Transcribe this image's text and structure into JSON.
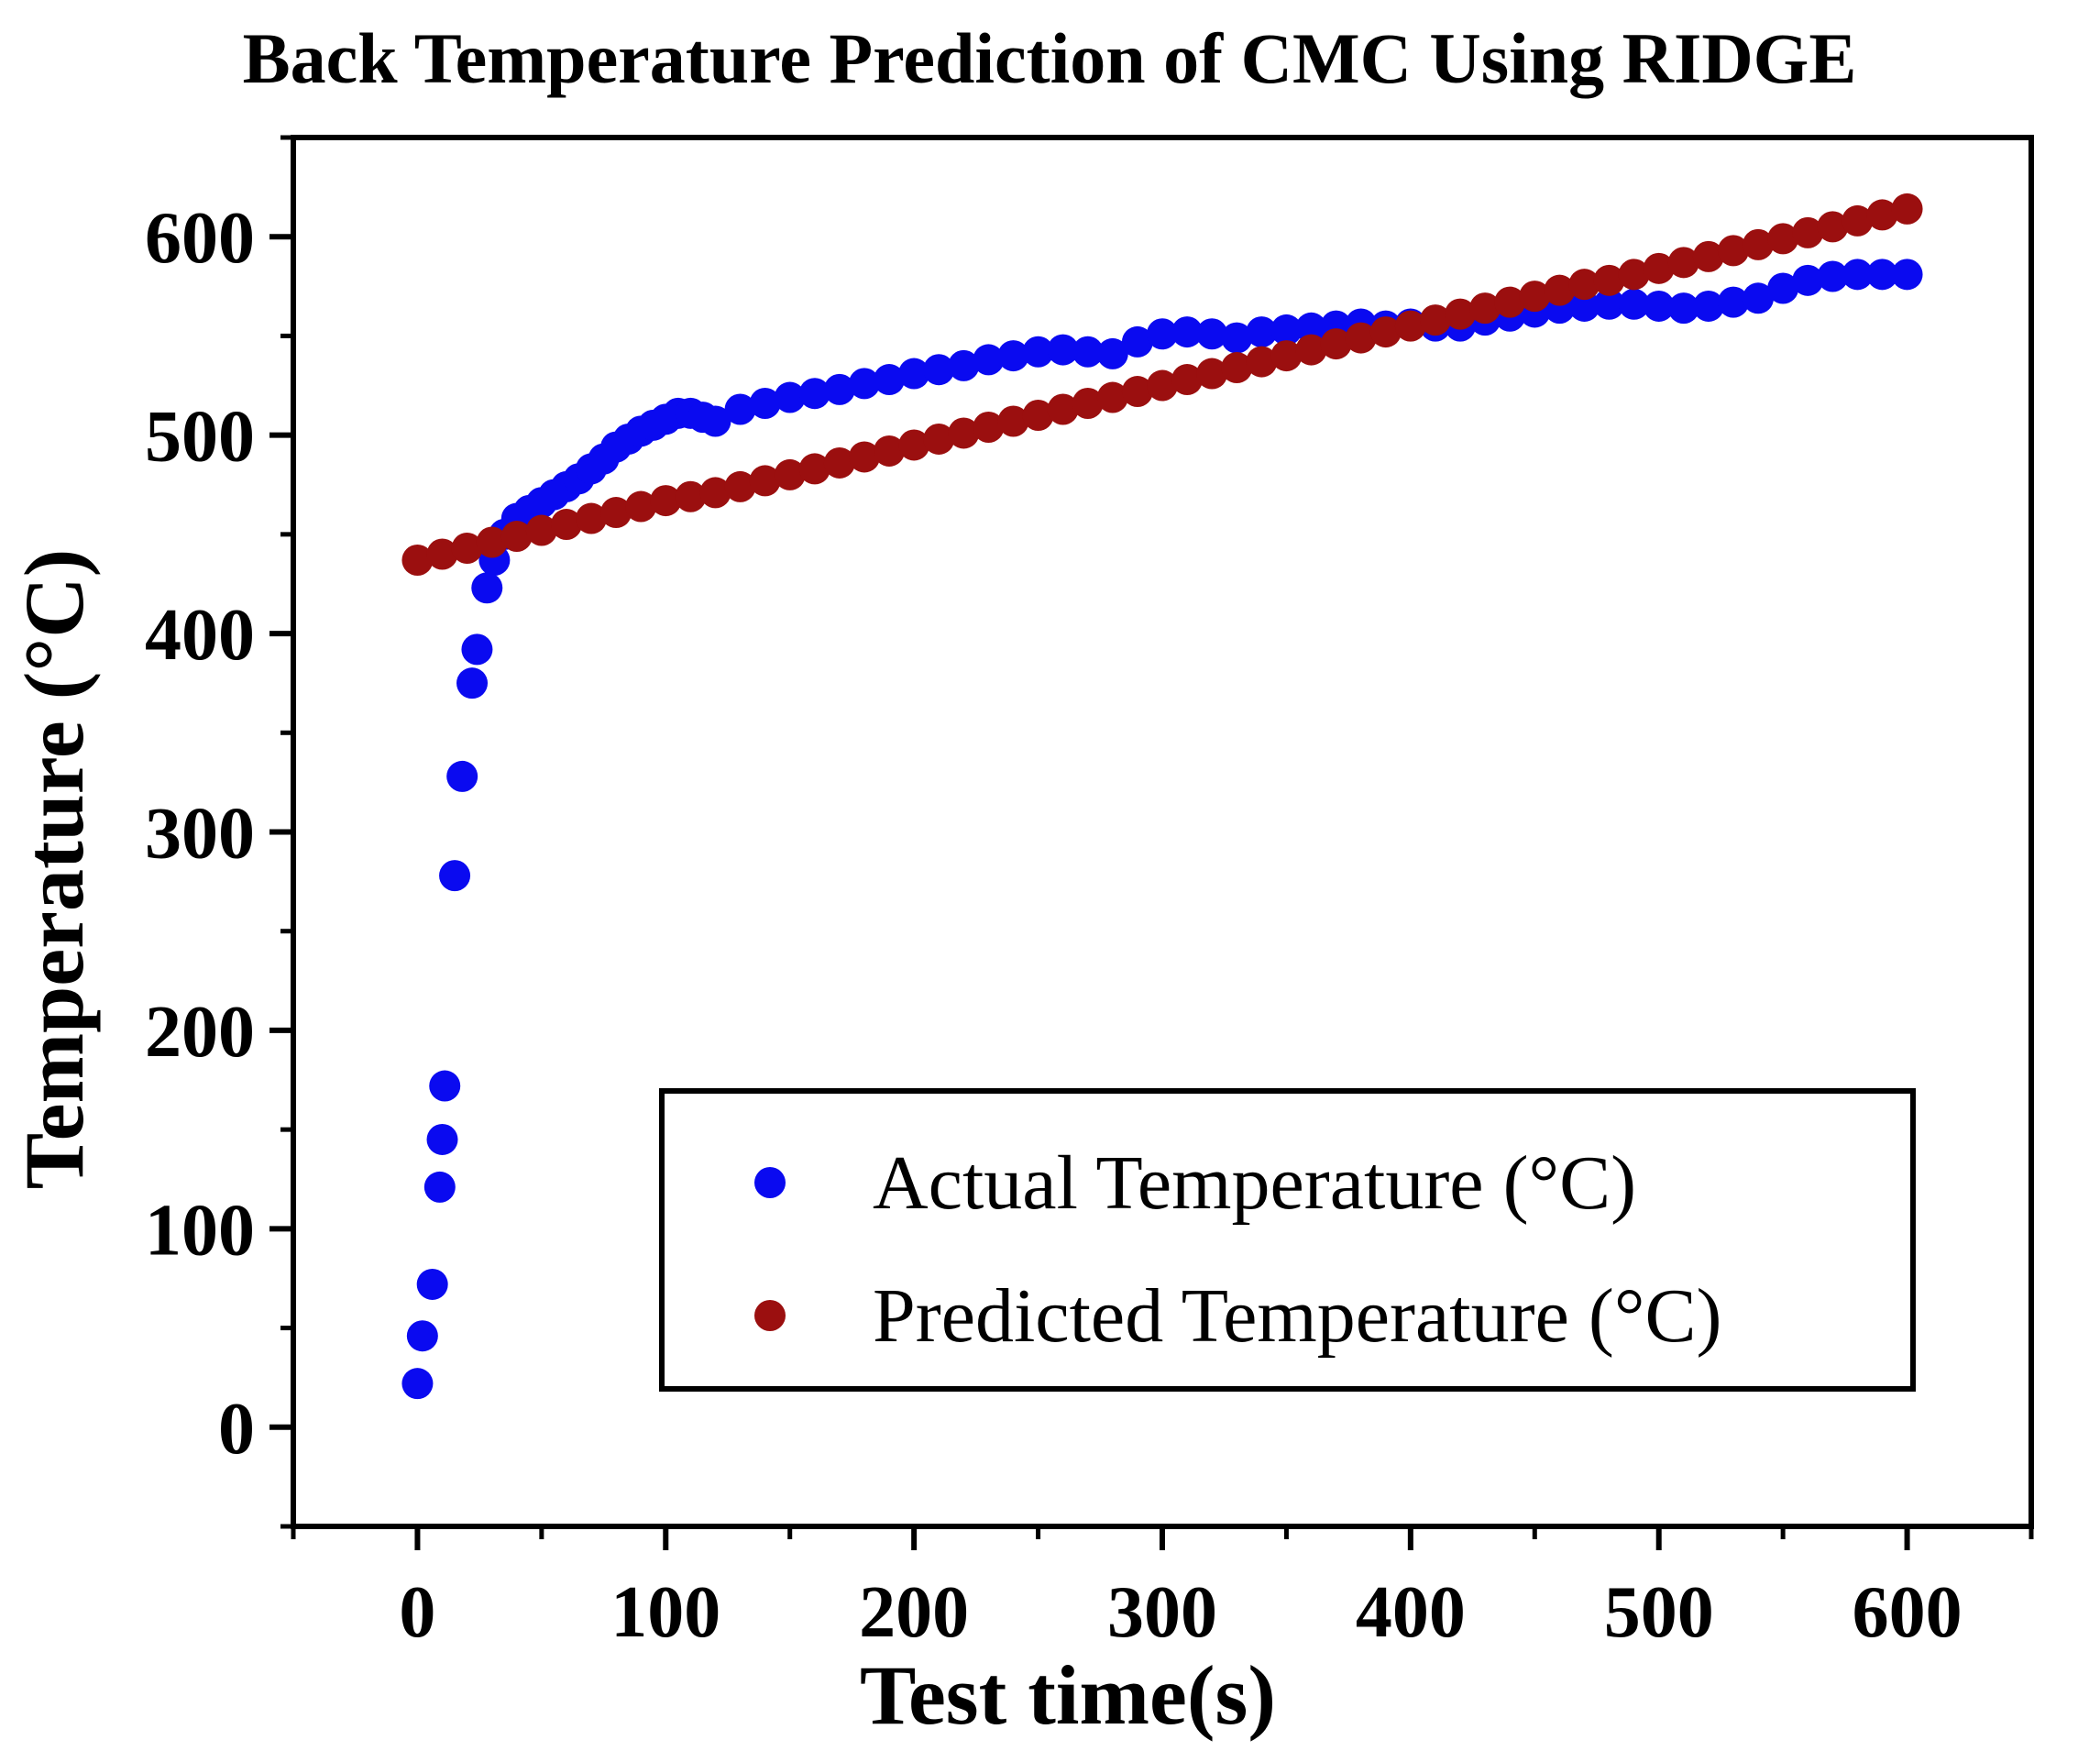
{
  "colors": {
    "actual": "#0a0af0",
    "predicted": "#9b0f0f",
    "axis": "#000000"
  },
  "chart_data": {
    "type": "scatter",
    "title": "Back Temperature Prediction of CMC Using RIDGE",
    "xlabel": "Test time(s)",
    "ylabel": "Temperature (°C)",
    "xlim": [
      -50,
      650
    ],
    "ylim": [
      -50,
      650
    ],
    "xticks": [
      0,
      100,
      200,
      300,
      400,
      500,
      600
    ],
    "yticks": [
      0,
      100,
      200,
      300,
      400,
      500,
      600
    ],
    "xtick_labels": [
      "0",
      "100",
      "200",
      "300",
      "400",
      "500",
      "600"
    ],
    "ytick_labels": [
      "0",
      "100",
      "200",
      "300",
      "400",
      "500",
      "600"
    ],
    "legend_position": "lower-right",
    "series": [
      {
        "name": "Actual Temperature (°C)",
        "color": "#0a0af0",
        "x": [
          0,
          2,
          6,
          9,
          10,
          11,
          15,
          18,
          22,
          24,
          28,
          31,
          35,
          40,
          45,
          50,
          55,
          60,
          65,
          70,
          75,
          80,
          85,
          90,
          95,
          100,
          105,
          110,
          115,
          120,
          130,
          140,
          150,
          160,
          170,
          180,
          190,
          200,
          210,
          220,
          230,
          240,
          250,
          260,
          270,
          280,
          290,
          300,
          310,
          320,
          330,
          340,
          350,
          360,
          370,
          380,
          390,
          400,
          410,
          420,
          430,
          440,
          450,
          460,
          470,
          480,
          490,
          500,
          510,
          520,
          530,
          540,
          550,
          560,
          570,
          580,
          590,
          600
        ],
        "y": [
          22,
          46,
          72,
          121,
          145,
          172,
          278,
          328,
          375,
          392,
          423,
          437,
          450,
          458,
          462,
          466,
          470,
          474,
          478,
          483,
          488,
          494,
          498,
          502,
          505,
          508,
          511,
          511,
          509,
          507,
          513,
          516,
          519,
          521,
          523,
          526,
          528,
          531,
          533,
          535,
          538,
          540,
          542,
          543,
          542,
          541,
          547,
          551,
          552,
          551,
          549,
          552,
          553,
          554,
          555,
          556,
          555,
          556,
          555,
          555,
          558,
          560,
          562,
          564,
          565,
          566,
          566,
          565,
          564,
          565,
          567,
          569,
          574,
          578,
          580,
          581,
          581,
          581
        ]
      },
      {
        "name": "Predicted Temperature (°C)",
        "color": "#9b0f0f",
        "x": [
          0,
          10,
          20,
          30,
          40,
          50,
          60,
          70,
          80,
          90,
          100,
          110,
          120,
          130,
          140,
          150,
          160,
          170,
          180,
          190,
          200,
          210,
          220,
          230,
          240,
          250,
          260,
          270,
          280,
          290,
          300,
          310,
          320,
          330,
          340,
          350,
          360,
          370,
          380,
          390,
          400,
          410,
          420,
          430,
          440,
          450,
          460,
          470,
          480,
          490,
          500,
          510,
          520,
          530,
          540,
          550,
          560,
          570,
          580,
          590,
          600
        ],
        "y": [
          437,
          440,
          443,
          446,
          449,
          452,
          455,
          458,
          461,
          464,
          467,
          469,
          471,
          474,
          477,
          480,
          483,
          486,
          489,
          492,
          495,
          498,
          501,
          504,
          507,
          510,
          513,
          516,
          519,
          522,
          525,
          528,
          531,
          534,
          537,
          540,
          543,
          546,
          549,
          552,
          555,
          558,
          561,
          564,
          567,
          570,
          573,
          576,
          578,
          581,
          584,
          587,
          590,
          593,
          596,
          599,
          602,
          605,
          608,
          611,
          614
        ]
      }
    ]
  }
}
